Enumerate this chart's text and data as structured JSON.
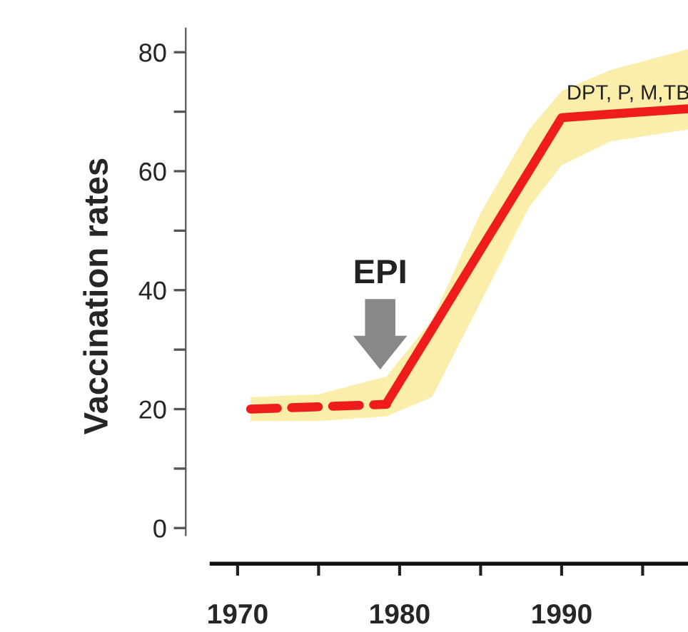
{
  "chart_data": {
    "type": "line",
    "ylabel": "Vaccination rates",
    "xlim": [
      1966.8,
      1997.8
    ],
    "ylim": [
      -6,
      84
    ],
    "xticks": [
      1970,
      {
        "value": 1975,
        "label": null
      },
      1980,
      {
        "value": 1985,
        "label": null
      },
      1990,
      {
        "value": 1995,
        "label": null
      }
    ],
    "yticks": [
      0,
      {
        "value": 10,
        "label": null
      },
      20,
      {
        "value": 30,
        "label": null
      },
      40,
      {
        "value": 50,
        "label": null
      },
      60,
      {
        "value": 70,
        "label": null
      },
      80
    ],
    "grid": false,
    "legend": false,
    "marker": "none",
    "series": [
      {
        "color": "#ee1c1c",
        "line_style": "dashed",
        "x": [
          1970.8,
          1975,
          1979.2
        ],
        "values": [
          20,
          20.4,
          20.8
        ],
        "lower": [
          18,
          18,
          18.8
        ],
        "upper": [
          22,
          22.5,
          25.5
        ]
      },
      {
        "color": "#ee1c1c",
        "line_style": "solid",
        "x": [
          1979.2,
          1982,
          1985,
          1988,
          1990,
          1993,
          1997.8
        ],
        "values": [
          21,
          33.4,
          46.8,
          60.1,
          69,
          69.6,
          70.5
        ],
        "lower": [
          18.8,
          22,
          38,
          54,
          61,
          65,
          67
        ],
        "upper": [
          25.5,
          35,
          53,
          67,
          73.5,
          77,
          80.5
        ]
      }
    ],
    "annotations": [
      {
        "text": "EPI",
        "x": 1978.8,
        "y": 26
      },
      {
        "text": "DPT, P, M,TB",
        "x": 1990,
        "y": 69
      }
    ]
  }
}
